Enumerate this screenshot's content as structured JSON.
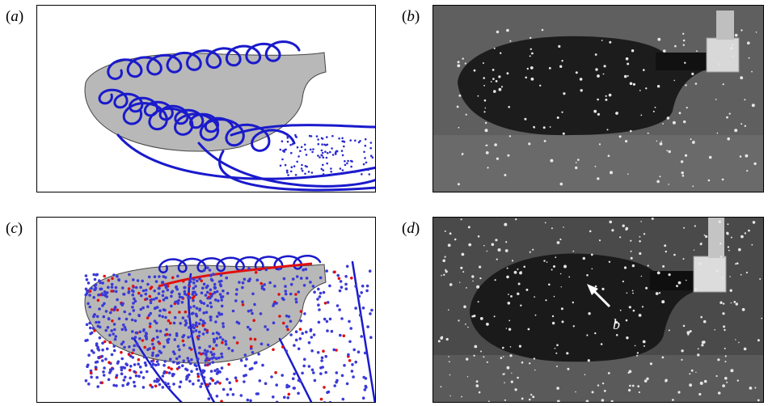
{
  "figure": {
    "panels": [
      {
        "id": "a",
        "label_open": "(",
        "label_letter": "a",
        "label_close": ")"
      },
      {
        "id": "b",
        "label_open": "(",
        "label_letter": "b",
        "label_close": ")"
      },
      {
        "id": "c",
        "label_open": "(",
        "label_letter": "c",
        "label_close": ")"
      },
      {
        "id": "d",
        "label_open": "(",
        "label_letter": "d",
        "label_close": ")"
      }
    ],
    "annotation_d": "b"
  },
  "colors": {
    "streamline": "#1a1acc",
    "particle_blue": "#3a3ad8",
    "particle_red": "#e01010",
    "wing": "#b8b8b8",
    "photo_bg": "#5c5c5c"
  }
}
